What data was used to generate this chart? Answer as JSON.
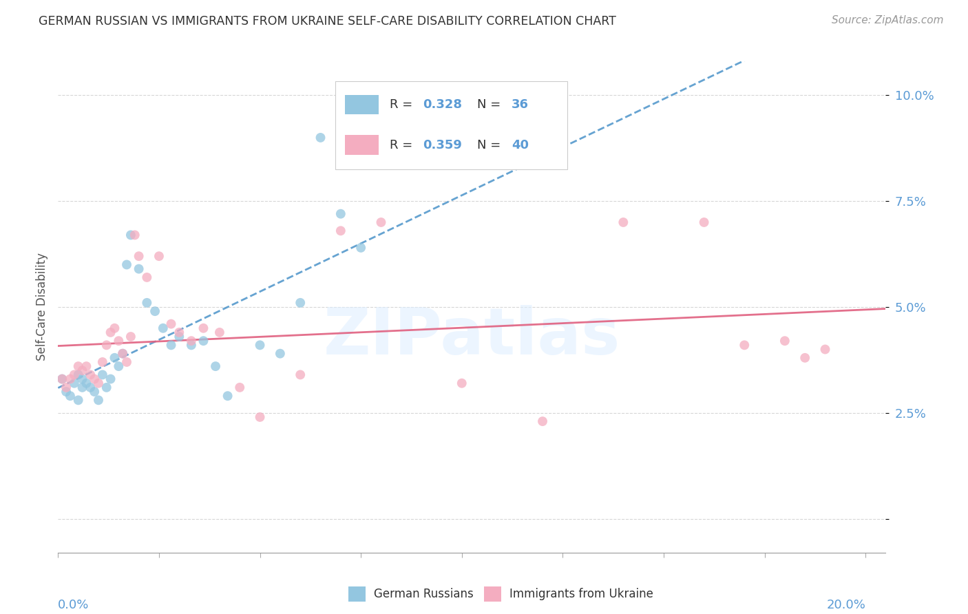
{
  "title": "GERMAN RUSSIAN VS IMMIGRANTS FROM UKRAINE SELF-CARE DISABILITY CORRELATION CHART",
  "source": "Source: ZipAtlas.com",
  "ylabel": "Self-Care Disability",
  "xlim": [
    0.0,
    0.205
  ],
  "ylim": [
    -0.008,
    0.108
  ],
  "yticks": [
    0.0,
    0.025,
    0.05,
    0.075,
    0.1
  ],
  "ytick_labels": [
    "",
    "2.5%",
    "5.0%",
    "7.5%",
    "10.0%"
  ],
  "color_blue": "#93c6e0",
  "color_pink": "#f4adc0",
  "color_blue_line": "#5599cc",
  "color_pink_line": "#e06080",
  "color_axis_blue": "#5b9bd5",
  "watermark": "ZIPatlas",
  "legend_r1": "0.328",
  "legend_n1": "36",
  "legend_r2": "0.359",
  "legend_n2": "40",
  "gr_x": [
    0.001,
    0.002,
    0.003,
    0.004,
    0.005,
    0.005,
    0.006,
    0.006,
    0.007,
    0.008,
    0.009,
    0.01,
    0.011,
    0.012,
    0.013,
    0.014,
    0.015,
    0.016,
    0.017,
    0.018,
    0.02,
    0.022,
    0.024,
    0.026,
    0.028,
    0.03,
    0.033,
    0.036,
    0.039,
    0.042,
    0.05,
    0.055,
    0.06,
    0.065,
    0.07,
    0.075
  ],
  "gr_y": [
    0.033,
    0.03,
    0.029,
    0.032,
    0.034,
    0.028,
    0.031,
    0.033,
    0.032,
    0.031,
    0.03,
    0.028,
    0.034,
    0.031,
    0.033,
    0.038,
    0.036,
    0.039,
    0.06,
    0.067,
    0.059,
    0.051,
    0.049,
    0.045,
    0.041,
    0.043,
    0.041,
    0.042,
    0.036,
    0.029,
    0.041,
    0.039,
    0.051,
    0.09,
    0.072,
    0.064
  ],
  "uk_x": [
    0.001,
    0.002,
    0.003,
    0.004,
    0.005,
    0.006,
    0.007,
    0.008,
    0.009,
    0.01,
    0.011,
    0.012,
    0.013,
    0.014,
    0.015,
    0.016,
    0.017,
    0.018,
    0.019,
    0.02,
    0.022,
    0.025,
    0.028,
    0.03,
    0.033,
    0.036,
    0.04,
    0.045,
    0.05,
    0.06,
    0.07,
    0.08,
    0.1,
    0.12,
    0.14,
    0.16,
    0.17,
    0.18,
    0.185,
    0.19
  ],
  "uk_y": [
    0.033,
    0.031,
    0.033,
    0.034,
    0.036,
    0.035,
    0.036,
    0.034,
    0.033,
    0.032,
    0.037,
    0.041,
    0.044,
    0.045,
    0.042,
    0.039,
    0.037,
    0.043,
    0.067,
    0.062,
    0.057,
    0.062,
    0.046,
    0.044,
    0.042,
    0.045,
    0.044,
    0.031,
    0.024,
    0.034,
    0.068,
    0.07,
    0.032,
    0.023,
    0.07,
    0.07,
    0.041,
    0.042,
    0.038,
    0.04
  ]
}
